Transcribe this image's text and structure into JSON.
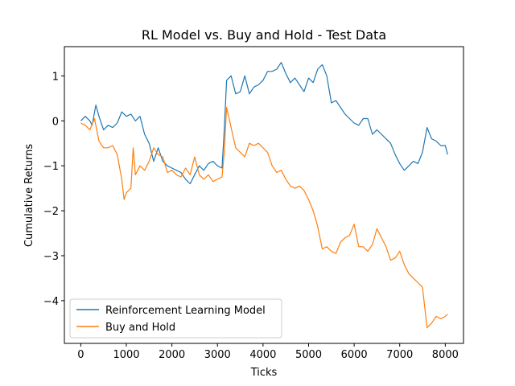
{
  "chart_data": {
    "type": "line",
    "title": "RL Model vs. Buy and Hold - Test Data",
    "xlabel": "Ticks",
    "ylabel": "Cumulative Returns",
    "xlim": [
      -360,
      8400
    ],
    "ylim": [
      -4.95,
      1.65
    ],
    "xticks": [
      0,
      1000,
      2000,
      3000,
      4000,
      5000,
      6000,
      7000,
      8000
    ],
    "yticks": [
      1,
      0,
      -1,
      -2,
      -3,
      -4
    ],
    "xtick_labels": [
      "0",
      "1000",
      "2000",
      "3000",
      "4000",
      "5000",
      "6000",
      "7000",
      "8000"
    ],
    "ytick_labels": [
      "1",
      "0",
      "−1",
      "−2",
      "−3",
      "−4"
    ],
    "grid": false,
    "legend": "lower-left",
    "series": [
      {
        "name": "Reinforcement Learning Model",
        "color": "#1f77b4",
        "points": [
          [
            0,
            0.0
          ],
          [
            100,
            0.1
          ],
          [
            200,
            0.0
          ],
          [
            250,
            -0.1
          ],
          [
            330,
            0.35
          ],
          [
            400,
            0.1
          ],
          [
            500,
            -0.2
          ],
          [
            600,
            -0.1
          ],
          [
            700,
            -0.15
          ],
          [
            800,
            -0.05
          ],
          [
            900,
            0.2
          ],
          [
            1000,
            0.1
          ],
          [
            1100,
            0.15
          ],
          [
            1200,
            0.0
          ],
          [
            1300,
            0.1
          ],
          [
            1400,
            -0.3
          ],
          [
            1500,
            -0.5
          ],
          [
            1600,
            -0.9
          ],
          [
            1700,
            -0.6
          ],
          [
            1800,
            -0.9
          ],
          [
            1900,
            -1.0
          ],
          [
            2000,
            -1.05
          ],
          [
            2100,
            -1.1
          ],
          [
            2200,
            -1.15
          ],
          [
            2300,
            -1.3
          ],
          [
            2400,
            -1.4
          ],
          [
            2500,
            -1.2
          ],
          [
            2600,
            -1.0
          ],
          [
            2700,
            -1.1
          ],
          [
            2800,
            -0.95
          ],
          [
            2900,
            -0.9
          ],
          [
            3000,
            -1.0
          ],
          [
            3100,
            -1.05
          ],
          [
            3150,
            -0.2
          ],
          [
            3200,
            0.9
          ],
          [
            3300,
            1.0
          ],
          [
            3400,
            0.6
          ],
          [
            3500,
            0.65
          ],
          [
            3600,
            1.0
          ],
          [
            3700,
            0.6
          ],
          [
            3800,
            0.75
          ],
          [
            3900,
            0.8
          ],
          [
            4000,
            0.9
          ],
          [
            4100,
            1.1
          ],
          [
            4200,
            1.1
          ],
          [
            4300,
            1.15
          ],
          [
            4400,
            1.3
          ],
          [
            4500,
            1.05
          ],
          [
            4600,
            0.85
          ],
          [
            4700,
            0.95
          ],
          [
            4800,
            0.8
          ],
          [
            4900,
            0.65
          ],
          [
            5000,
            0.95
          ],
          [
            5100,
            0.85
          ],
          [
            5200,
            1.15
          ],
          [
            5300,
            1.25
          ],
          [
            5400,
            1.0
          ],
          [
            5500,
            0.4
          ],
          [
            5600,
            0.45
          ],
          [
            5700,
            0.3
          ],
          [
            5800,
            0.15
          ],
          [
            5900,
            0.05
          ],
          [
            6000,
            -0.05
          ],
          [
            6100,
            -0.1
          ],
          [
            6200,
            0.05
          ],
          [
            6300,
            0.05
          ],
          [
            6400,
            -0.3
          ],
          [
            6500,
            -0.2
          ],
          [
            6600,
            -0.3
          ],
          [
            6700,
            -0.4
          ],
          [
            6800,
            -0.5
          ],
          [
            6900,
            -0.75
          ],
          [
            7000,
            -0.95
          ],
          [
            7100,
            -1.1
          ],
          [
            7200,
            -1.0
          ],
          [
            7300,
            -0.9
          ],
          [
            7400,
            -0.95
          ],
          [
            7500,
            -0.7
          ],
          [
            7600,
            -0.15
          ],
          [
            7700,
            -0.4
          ],
          [
            7800,
            -0.45
          ],
          [
            7900,
            -0.55
          ],
          [
            8000,
            -0.55
          ],
          [
            8050,
            -0.75
          ]
        ]
      },
      {
        "name": "Buy and Hold",
        "color": "#ff7f0e",
        "points": [
          [
            0,
            -0.05
          ],
          [
            100,
            -0.1
          ],
          [
            200,
            -0.2
          ],
          [
            300,
            0.05
          ],
          [
            400,
            -0.45
          ],
          [
            500,
            -0.6
          ],
          [
            600,
            -0.6
          ],
          [
            700,
            -0.55
          ],
          [
            800,
            -0.75
          ],
          [
            900,
            -1.3
          ],
          [
            950,
            -1.75
          ],
          [
            1000,
            -1.6
          ],
          [
            1100,
            -1.5
          ],
          [
            1150,
            -0.6
          ],
          [
            1200,
            -1.2
          ],
          [
            1300,
            -1.0
          ],
          [
            1400,
            -1.1
          ],
          [
            1500,
            -0.9
          ],
          [
            1600,
            -0.6
          ],
          [
            1700,
            -0.75
          ],
          [
            1800,
            -0.8
          ],
          [
            1900,
            -1.15
          ],
          [
            2000,
            -1.1
          ],
          [
            2100,
            -1.2
          ],
          [
            2200,
            -1.25
          ],
          [
            2300,
            -1.05
          ],
          [
            2400,
            -1.2
          ],
          [
            2500,
            -0.8
          ],
          [
            2600,
            -1.2
          ],
          [
            2700,
            -1.3
          ],
          [
            2800,
            -1.2
          ],
          [
            2900,
            -1.35
          ],
          [
            3000,
            -1.3
          ],
          [
            3100,
            -1.25
          ],
          [
            3150,
            -0.7
          ],
          [
            3200,
            0.3
          ],
          [
            3300,
            -0.15
          ],
          [
            3400,
            -0.6
          ],
          [
            3500,
            -0.7
          ],
          [
            3600,
            -0.8
          ],
          [
            3700,
            -0.5
          ],
          [
            3800,
            -0.55
          ],
          [
            3900,
            -0.5
          ],
          [
            4000,
            -0.6
          ],
          [
            4100,
            -0.7
          ],
          [
            4200,
            -1.0
          ],
          [
            4300,
            -1.15
          ],
          [
            4400,
            -1.1
          ],
          [
            4500,
            -1.3
          ],
          [
            4600,
            -1.45
          ],
          [
            4700,
            -1.5
          ],
          [
            4800,
            -1.45
          ],
          [
            4900,
            -1.55
          ],
          [
            5000,
            -1.75
          ],
          [
            5100,
            -2.0
          ],
          [
            5200,
            -2.35
          ],
          [
            5300,
            -2.85
          ],
          [
            5400,
            -2.8
          ],
          [
            5500,
            -2.9
          ],
          [
            5600,
            -2.95
          ],
          [
            5700,
            -2.7
          ],
          [
            5800,
            -2.6
          ],
          [
            5900,
            -2.55
          ],
          [
            6000,
            -2.3
          ],
          [
            6100,
            -2.8
          ],
          [
            6200,
            -2.8
          ],
          [
            6300,
            -2.9
          ],
          [
            6400,
            -2.75
          ],
          [
            6500,
            -2.4
          ],
          [
            6600,
            -2.6
          ],
          [
            6700,
            -2.8
          ],
          [
            6800,
            -3.1
          ],
          [
            6900,
            -3.05
          ],
          [
            7000,
            -2.9
          ],
          [
            7100,
            -3.2
          ],
          [
            7200,
            -3.4
          ],
          [
            7300,
            -3.5
          ],
          [
            7400,
            -3.6
          ],
          [
            7500,
            -3.7
          ],
          [
            7600,
            -4.6
          ],
          [
            7700,
            -4.5
          ],
          [
            7800,
            -4.35
          ],
          [
            7900,
            -4.4
          ],
          [
            8000,
            -4.35
          ],
          [
            8050,
            -4.3
          ]
        ]
      }
    ]
  }
}
